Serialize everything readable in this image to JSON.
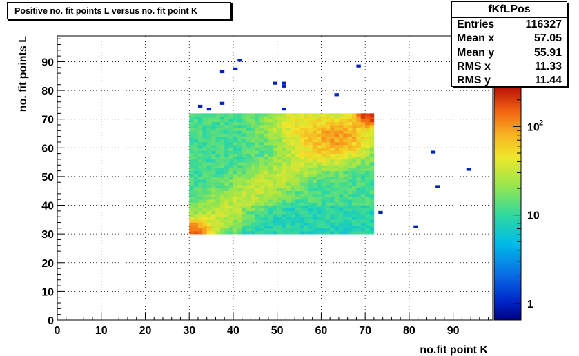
{
  "title": "Positive no. fit points L versus no. fit point K",
  "stats": {
    "name": "fKfLPos",
    "rows": [
      {
        "label": "Entries",
        "value": "116327"
      },
      {
        "label": "Mean x",
        "value": "57.05"
      },
      {
        "label": "Mean y",
        "value": "55.91"
      },
      {
        "label": "RMS x",
        "value": "11.33"
      },
      {
        "label": "RMS y",
        "value": "11.44"
      }
    ]
  },
  "chart_data": {
    "type": "heatmap",
    "title": "Positive no. fit points L versus no. fit point K",
    "xlabel": "no.fit point K",
    "ylabel": "no. fit points  L",
    "xlim": [
      0,
      99
    ],
    "ylim": [
      0,
      99
    ],
    "xticks": [
      0,
      10,
      20,
      30,
      40,
      50,
      60,
      70,
      80,
      90
    ],
    "yticks": [
      0,
      10,
      20,
      30,
      40,
      50,
      60,
      70,
      80,
      90
    ],
    "grid": true,
    "color_scale": "log",
    "zlim": [
      0.65,
      280
    ],
    "colorbar_ticks": [
      {
        "value": 1,
        "label": "1"
      },
      {
        "value": 10,
        "label": "10"
      },
      {
        "value": 100,
        "label": "10",
        "exponent": "2"
      }
    ],
    "region": {
      "x_range": [
        30,
        72
      ],
      "y_range": [
        30,
        72
      ]
    },
    "hot_spots": [
      {
        "x": 64,
        "y": 63,
        "value": 250
      },
      {
        "x": 71,
        "y": 71,
        "value": 280
      },
      {
        "x": 31,
        "y": 31,
        "value": 150
      }
    ],
    "sparse_bins": [
      {
        "x": 41,
        "y": 90,
        "value": 1
      },
      {
        "x": 40,
        "y": 87,
        "value": 1
      },
      {
        "x": 37,
        "y": 86,
        "value": 1
      },
      {
        "x": 68,
        "y": 88,
        "value": 1
      },
      {
        "x": 49,
        "y": 82,
        "value": 1
      },
      {
        "x": 51,
        "y": 82,
        "value": 1
      },
      {
        "x": 51,
        "y": 81,
        "value": 1
      },
      {
        "x": 63,
        "y": 78,
        "value": 1
      },
      {
        "x": 37,
        "y": 75,
        "value": 1
      },
      {
        "x": 32,
        "y": 74,
        "value": 1
      },
      {
        "x": 34,
        "y": 73,
        "value": 1
      },
      {
        "x": 51,
        "y": 73,
        "value": 1
      },
      {
        "x": 85,
        "y": 58,
        "value": 1
      },
      {
        "x": 93,
        "y": 52,
        "value": 1
      },
      {
        "x": 86,
        "y": 46,
        "value": 1
      },
      {
        "x": 73,
        "y": 37,
        "value": 1
      },
      {
        "x": 81,
        "y": 32,
        "value": 1
      }
    ]
  }
}
